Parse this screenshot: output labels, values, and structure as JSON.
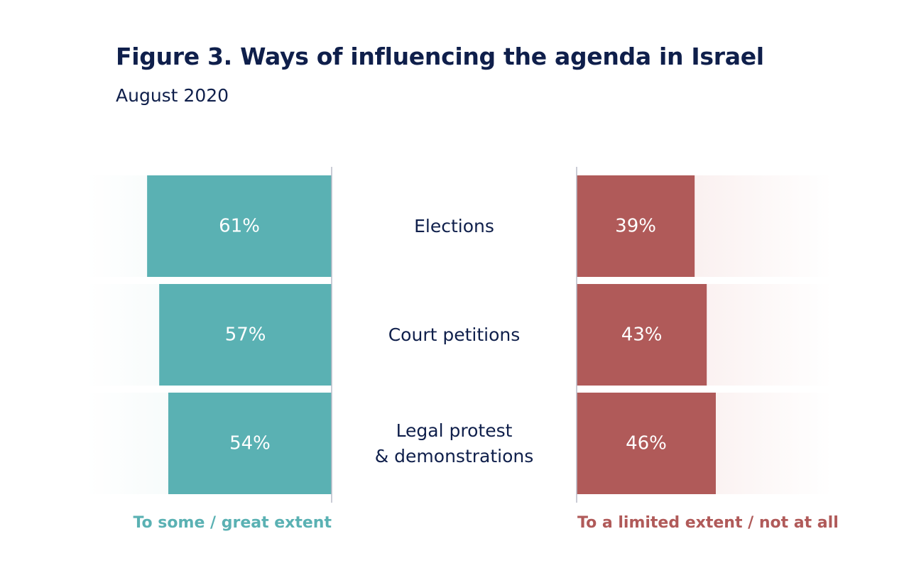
{
  "title": "Figure 3. Ways of influencing the agenda in Israel",
  "subtitle": "August 2020",
  "colors": {
    "positive": "#5ab1b3",
    "negative": "#b05a59",
    "positive_fade": "#e8f4f3",
    "negative_fade": "#f6e4e3",
    "text": "#0f1f4b",
    "axis": "#b9bcc8"
  },
  "legend": {
    "positive": "To some / great extent",
    "negative": "To a limited extent / not at all"
  },
  "chart_data": {
    "type": "bar",
    "orientation": "horizontal-diverging",
    "title": "Figure 3. Ways of influencing the agenda in Israel",
    "subtitle": "August 2020",
    "categories": [
      "Elections",
      "Court petitions",
      "Legal protest & demonstrations"
    ],
    "category_lines": [
      [
        "Elections"
      ],
      [
        "Court petitions"
      ],
      [
        "Legal protest",
        "& demonstrations"
      ]
    ],
    "series": [
      {
        "name": "To some / great extent",
        "values": [
          61,
          57,
          54
        ],
        "labels": [
          "61%",
          "57%",
          "54%"
        ]
      },
      {
        "name": "To a limited extent / not at all",
        "values": [
          39,
          43,
          46
        ],
        "labels": [
          "39%",
          "43%",
          "46%"
        ]
      }
    ],
    "unit": "%",
    "xlim": [
      0,
      100
    ],
    "grid": false
  }
}
